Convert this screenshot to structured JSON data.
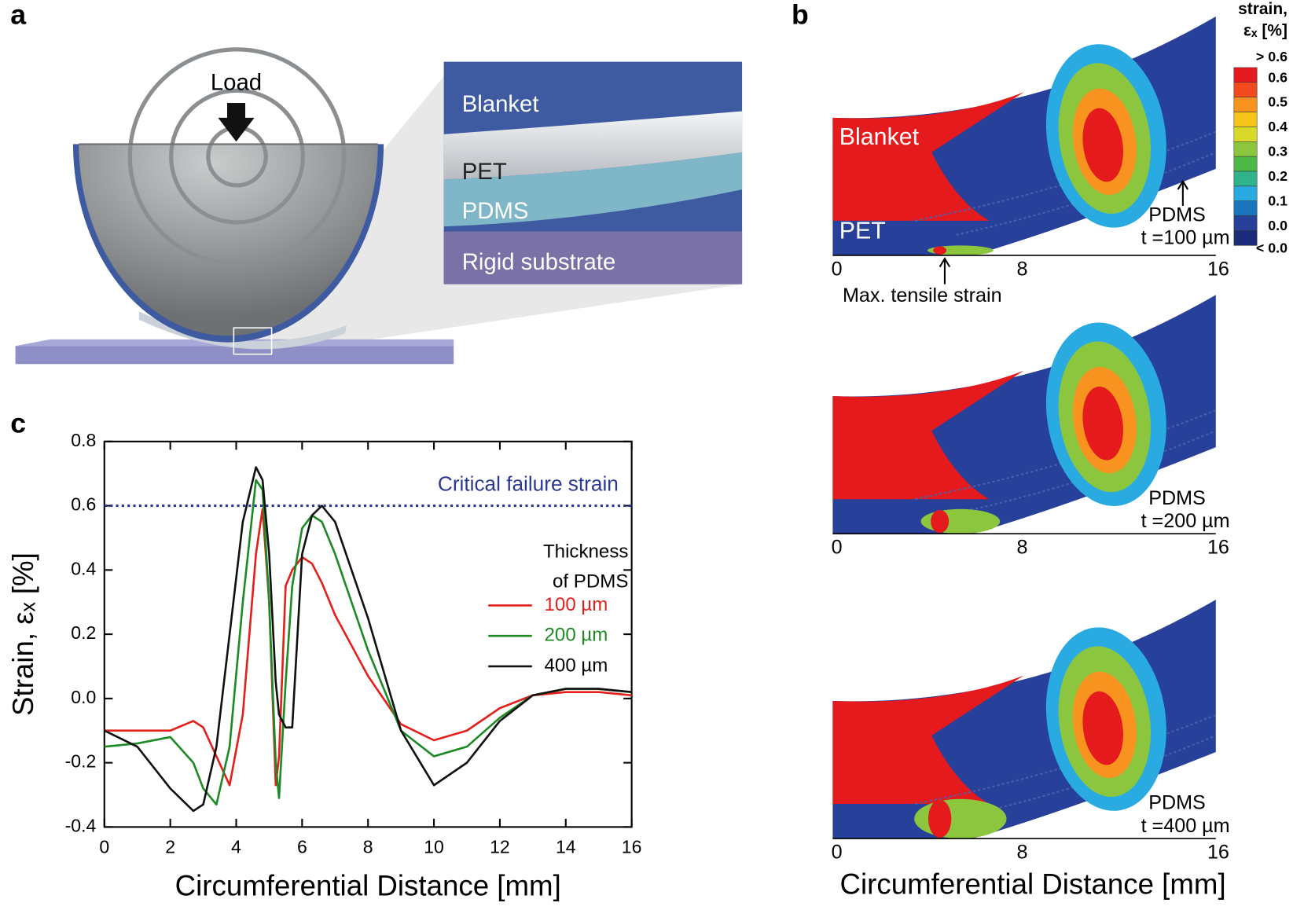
{
  "figure": {
    "panel_labels": [
      "a",
      "b",
      "c"
    ]
  },
  "panel_a": {
    "load": "Load",
    "layers": [
      "Blanket",
      "PET",
      "PDMS",
      "Rigid substrate"
    ]
  },
  "panel_b": {
    "colorbar_title": [
      "strain,",
      "εₓ [%]"
    ],
    "colorbar_labels": [
      "> 0.6",
      "0.6",
      "0.5",
      "0.4",
      "0.3",
      "0.2",
      "0.1",
      "0.0",
      "< 0.0"
    ],
    "colorbar_colors": [
      "#e41a1c",
      "#f04a1e",
      "#f7931e",
      "#f5c518",
      "#d9d92b",
      "#8cc63f",
      "#4db848",
      "#2eb38a",
      "#29abe2",
      "#1b75bc",
      "#27409a",
      "#1c2a7a"
    ],
    "blanket": "Blanket",
    "pet": "PET",
    "pdms": "PDMS",
    "thickness_labels": [
      "t =100 µm",
      "t =200 µm",
      "t =400 µm"
    ],
    "annotation": "Max. tensile strain",
    "x_tick_labels": [
      "0",
      "8",
      "16"
    ],
    "x_label": "Circumferential Distance [mm]"
  },
  "chart_data": {
    "type": "line",
    "x_label": "Circumferential Distance [mm]",
    "y_label": "Strain, εₓ [%]",
    "x": [
      0,
      1,
      2,
      2.7,
      3,
      3.4,
      3.8,
      4.2,
      4.6,
      4.8,
      5.0,
      5.2,
      5.3,
      5.5,
      5.7,
      6,
      6.3,
      6.6,
      7,
      8,
      9,
      10,
      11,
      12,
      13,
      14,
      15,
      16
    ],
    "series": [
      {
        "name": "100 µm",
        "color": "#e3201b",
        "values": [
          -0.1,
          -0.1,
          -0.1,
          -0.07,
          -0.09,
          -0.18,
          -0.27,
          -0.05,
          0.45,
          0.59,
          0.3,
          -0.27,
          -0.18,
          0.35,
          0.4,
          0.44,
          0.42,
          0.36,
          0.26,
          0.07,
          -0.08,
          -0.13,
          -0.1,
          -0.03,
          0.01,
          0.02,
          0.02,
          0.01
        ]
      },
      {
        "name": "200 µm",
        "color": "#1e8a26",
        "values": [
          -0.15,
          -0.14,
          -0.12,
          -0.2,
          -0.28,
          -0.33,
          -0.15,
          0.3,
          0.68,
          0.65,
          0.3,
          -0.2,
          -0.31,
          0.05,
          0.35,
          0.53,
          0.57,
          0.55,
          0.45,
          0.15,
          -0.1,
          -0.18,
          -0.15,
          -0.06,
          0.01,
          0.03,
          0.03,
          0.02
        ]
      },
      {
        "name": "400 µm",
        "color": "#111111",
        "values": [
          -0.1,
          -0.15,
          -0.28,
          -0.35,
          -0.33,
          -0.15,
          0.2,
          0.55,
          0.72,
          0.68,
          0.45,
          0.05,
          -0.05,
          -0.09,
          -0.09,
          0.45,
          0.57,
          0.6,
          0.55,
          0.25,
          -0.1,
          -0.27,
          -0.2,
          -0.07,
          0.01,
          0.03,
          0.03,
          0.02
        ]
      }
    ],
    "legend_title": [
      "Thickness",
      "of PDMS"
    ],
    "threshold": {
      "value": 0.6,
      "label": "Critical failure strain",
      "color": "#2b3990"
    },
    "xlim": [
      0,
      16
    ],
    "xticks": [
      0,
      2,
      4,
      6,
      8,
      10,
      12,
      14,
      16
    ],
    "ylim": [
      -0.4,
      0.8
    ],
    "yticks": [
      -0.4,
      -0.2,
      {
        "value": 0,
        "label": "0.0"
      },
      0.2,
      0.4,
      0.6,
      0.8
    ]
  }
}
